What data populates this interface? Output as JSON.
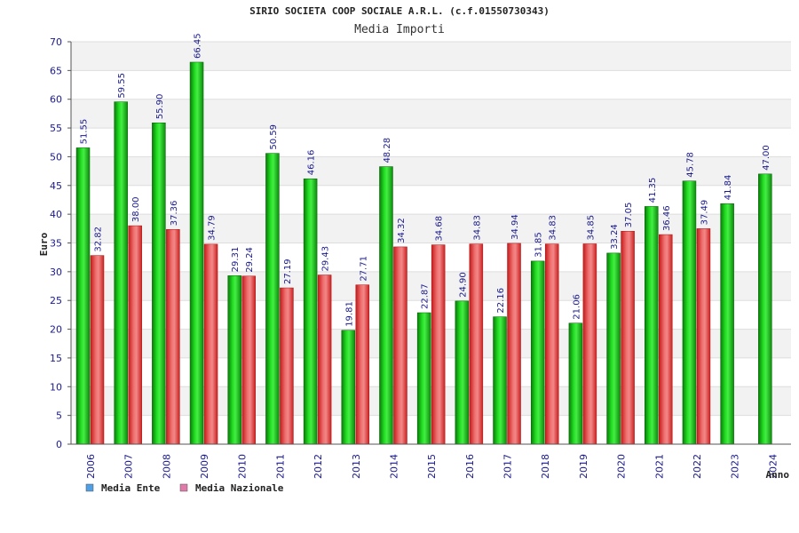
{
  "header": {
    "title": "SIRIO SOCIETA COOP SOCIALE A.R.L. (c.f.01550730343)",
    "subtitle": "Media Importi"
  },
  "chart_data": {
    "type": "bar",
    "title": "Media Importi",
    "xlabel": "Anno",
    "ylabel": "Euro",
    "ylim": [
      0,
      70
    ],
    "ytick_step": 5,
    "grid": true,
    "legend_placement": "bottom-left",
    "categories": [
      "2006",
      "2007",
      "2008",
      "2009",
      "2010",
      "2011",
      "2012",
      "2013",
      "2014",
      "2015",
      "2016",
      "2017",
      "2018",
      "2019",
      "2020",
      "2021",
      "2022",
      "2023",
      "2024"
    ],
    "series": [
      {
        "name": "Media Ente",
        "color": "#11bb11",
        "legend_color": "#4f9fe6",
        "values": [
          51.55,
          59.55,
          55.9,
          66.45,
          29.31,
          50.59,
          46.16,
          19.81,
          48.28,
          22.87,
          24.9,
          22.16,
          31.85,
          21.06,
          33.24,
          41.35,
          45.78,
          41.84,
          47.0
        ],
        "labels": [
          "51.55",
          "59.55",
          "55.90",
          "66.45",
          "29.31",
          "50.59",
          "46.16",
          "19.81",
          "48.28",
          "22.87",
          "24.90",
          "22.16",
          "31.85",
          "21.06",
          "33.24",
          "41.35",
          "45.78",
          "41.84",
          "47.00"
        ]
      },
      {
        "name": "Media Nazionale",
        "color": "#ee3333",
        "legend_color": "#e07aa8",
        "values": [
          32.82,
          38.0,
          37.36,
          34.79,
          29.24,
          27.19,
          29.43,
          27.71,
          34.32,
          34.68,
          34.83,
          34.94,
          34.83,
          34.85,
          37.05,
          36.46,
          37.49,
          null,
          null
        ],
        "labels": [
          "32.82",
          "38.00",
          "37.36",
          "34.79",
          "29.24",
          "27.19",
          "29.43",
          "27.71",
          "34.32",
          "34.68",
          "34.83",
          "34.94",
          "34.83",
          "34.85",
          "37.05",
          "36.46",
          "37.49",
          "",
          ""
        ]
      }
    ]
  }
}
